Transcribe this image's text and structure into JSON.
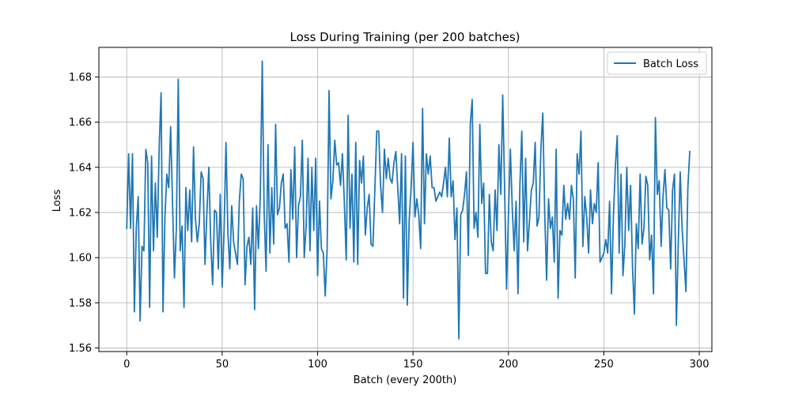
{
  "chart_data": {
    "type": "line",
    "title": "Loss During Training (per 200 batches)",
    "xlabel": "Batch (every 200th)",
    "ylabel": "Loss",
    "xlim": [
      -14.6,
      306.6
    ],
    "ylim": [
      1.5584,
      1.6931
    ],
    "xticks": [
      0,
      50,
      100,
      150,
      200,
      250,
      300
    ],
    "yticks": [
      1.56,
      1.58,
      1.6,
      1.62,
      1.64,
      1.66,
      1.68
    ],
    "ytick_labels": [
      "1.56",
      "1.58",
      "1.60",
      "1.62",
      "1.64",
      "1.66",
      "1.68"
    ],
    "grid": true,
    "legend_position": "top-right",
    "colors": {
      "series": "#1f77b4",
      "grid": "#b0b0b0"
    },
    "series": [
      {
        "name": "Batch Loss",
        "x_start": 0,
        "x_step": 1,
        "values": [
          1.613,
          1.646,
          1.613,
          1.646,
          1.576,
          1.613,
          1.627,
          1.572,
          1.605,
          1.603,
          1.648,
          1.642,
          1.578,
          1.645,
          1.603,
          1.633,
          1.609,
          1.649,
          1.673,
          1.576,
          1.618,
          1.637,
          1.631,
          1.658,
          1.624,
          1.591,
          1.613,
          1.679,
          1.603,
          1.614,
          1.578,
          1.631,
          1.612,
          1.63,
          1.607,
          1.649,
          1.617,
          1.607,
          1.615,
          1.638,
          1.635,
          1.597,
          1.62,
          1.64,
          1.607,
          1.588,
          1.621,
          1.62,
          1.595,
          1.628,
          1.587,
          1.612,
          1.651,
          1.611,
          1.595,
          1.623,
          1.607,
          1.602,
          1.597,
          1.625,
          1.637,
          1.635,
          1.588,
          1.605,
          1.609,
          1.597,
          1.622,
          1.577,
          1.623,
          1.604,
          1.628,
          1.687,
          1.62,
          1.594,
          1.65,
          1.602,
          1.631,
          1.606,
          1.659,
          1.619,
          1.622,
          1.633,
          1.637,
          1.613,
          1.615,
          1.598,
          1.639,
          1.617,
          1.649,
          1.6,
          1.623,
          1.627,
          1.652,
          1.6,
          1.614,
          1.644,
          1.603,
          1.64,
          1.612,
          1.644,
          1.592,
          1.625,
          1.604,
          1.602,
          1.583,
          1.604,
          1.674,
          1.626,
          1.634,
          1.652,
          1.641,
          1.642,
          1.632,
          1.646,
          1.625,
          1.599,
          1.663,
          1.613,
          1.637,
          1.598,
          1.651,
          1.597,
          1.643,
          1.633,
          1.645,
          1.61,
          1.622,
          1.628,
          1.606,
          1.605,
          1.63,
          1.656,
          1.656,
          1.632,
          1.62,
          1.648,
          1.635,
          1.644,
          1.635,
          1.633,
          1.642,
          1.647,
          1.631,
          1.615,
          1.646,
          1.582,
          1.645,
          1.579,
          1.617,
          1.631,
          1.651,
          1.618,
          1.626,
          1.619,
          1.604,
          1.666,
          1.615,
          1.646,
          1.637,
          1.645,
          1.631,
          1.631,
          1.625,
          1.627,
          1.629,
          1.627,
          1.633,
          1.64,
          1.627,
          1.653,
          1.627,
          1.634,
          1.608,
          1.622,
          1.564,
          1.619,
          1.621,
          1.628,
          1.638,
          1.601,
          1.659,
          1.67,
          1.613,
          1.62,
          1.609,
          1.659,
          1.624,
          1.633,
          1.593,
          1.593,
          1.628,
          1.607,
          1.603,
          1.63,
          1.612,
          1.65,
          1.628,
          1.672,
          1.63,
          1.586,
          1.619,
          1.648,
          1.622,
          1.603,
          1.625,
          1.584,
          1.632,
          1.656,
          1.607,
          1.644,
          1.603,
          1.616,
          1.63,
          1.633,
          1.651,
          1.614,
          1.618,
          1.648,
          1.664,
          1.62,
          1.59,
          1.626,
          1.613,
          1.618,
          1.598,
          1.648,
          1.582,
          1.612,
          1.61,
          1.632,
          1.617,
          1.624,
          1.617,
          1.632,
          1.626,
          1.591,
          1.646,
          1.637,
          1.656,
          1.605,
          1.627,
          1.618,
          1.602,
          1.63,
          1.615,
          1.624,
          1.62,
          1.642,
          1.598,
          1.6,
          1.602,
          1.608,
          1.602,
          1.625,
          1.584,
          1.618,
          1.64,
          1.654,
          1.602,
          1.637,
          1.592,
          1.606,
          1.64,
          1.612,
          1.632,
          1.596,
          1.575,
          1.615,
          1.604,
          1.637,
          1.606,
          1.613,
          1.636,
          1.632,
          1.599,
          1.61,
          1.584,
          1.662,
          1.628,
          1.634,
          1.605,
          1.627,
          1.639,
          1.622,
          1.621,
          1.595,
          1.63,
          1.637,
          1.57,
          1.607,
          1.638,
          1.613,
          1.599,
          1.585,
          1.631,
          1.647
        ]
      }
    ]
  }
}
